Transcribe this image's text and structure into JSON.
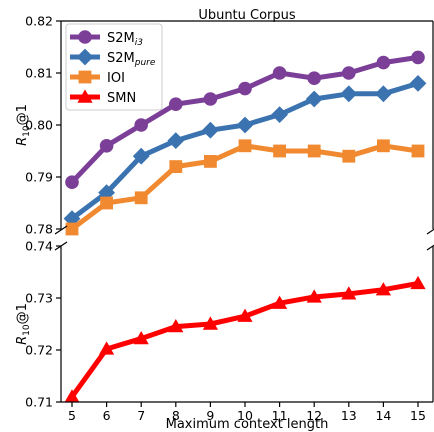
{
  "chart_data": {
    "type": "line",
    "title": "Ubuntu Corpus",
    "xlabel": "Maximum context length",
    "ylabel": "R10@1",
    "ylabel_main": "R",
    "ylabel_sub": "10",
    "ylabel_tail": "@1",
    "grid": false,
    "legend_position": "top-left",
    "x": [
      5,
      6,
      7,
      8,
      9,
      10,
      11,
      12,
      13,
      14,
      15
    ],
    "broken_y_axis": true,
    "panels": [
      {
        "ylim": [
          0.78,
          0.82
        ],
        "yticks": [
          "0.78",
          "0.79",
          "0.80",
          "0.81",
          "0.82"
        ],
        "series": [
          "S2M_i3",
          "S2M_pure",
          "IOI"
        ]
      },
      {
        "ylim": [
          0.71,
          0.74
        ],
        "yticks": [
          "0.71",
          "0.72",
          "0.73",
          "0.74"
        ],
        "series": [
          "SMN"
        ]
      }
    ],
    "series": [
      {
        "name": "S2M_i3",
        "label_main": "S2M",
        "label_sub": "i3",
        "color": "#7b3f98",
        "marker": "circle",
        "values": [
          0.789,
          0.796,
          0.8,
          0.804,
          0.805,
          0.807,
          0.81,
          0.809,
          0.81,
          0.812,
          0.813
        ]
      },
      {
        "name": "S2M_pure",
        "label_main": "S2M",
        "label_sub": "pure",
        "color": "#3b73b0",
        "marker": "diamond",
        "values": [
          0.782,
          0.787,
          0.794,
          0.797,
          0.799,
          0.8,
          0.802,
          0.805,
          0.806,
          0.806,
          0.808
        ]
      },
      {
        "name": "IOI",
        "label_main": "IOI",
        "label_sub": "",
        "color": "#f0892f",
        "marker": "square",
        "values": [
          0.78,
          0.785,
          0.786,
          0.792,
          0.793,
          0.796,
          0.795,
          0.795,
          0.794,
          0.796,
          0.795
        ]
      },
      {
        "name": "SMN",
        "label_main": "SMN",
        "label_sub": "",
        "color": "#ff0000",
        "marker": "triangle",
        "values": [
          0.711,
          0.7202,
          0.7222,
          0.7245,
          0.725,
          0.7265,
          0.729,
          0.7302,
          0.7308,
          0.7316,
          0.7328
        ]
      }
    ]
  }
}
